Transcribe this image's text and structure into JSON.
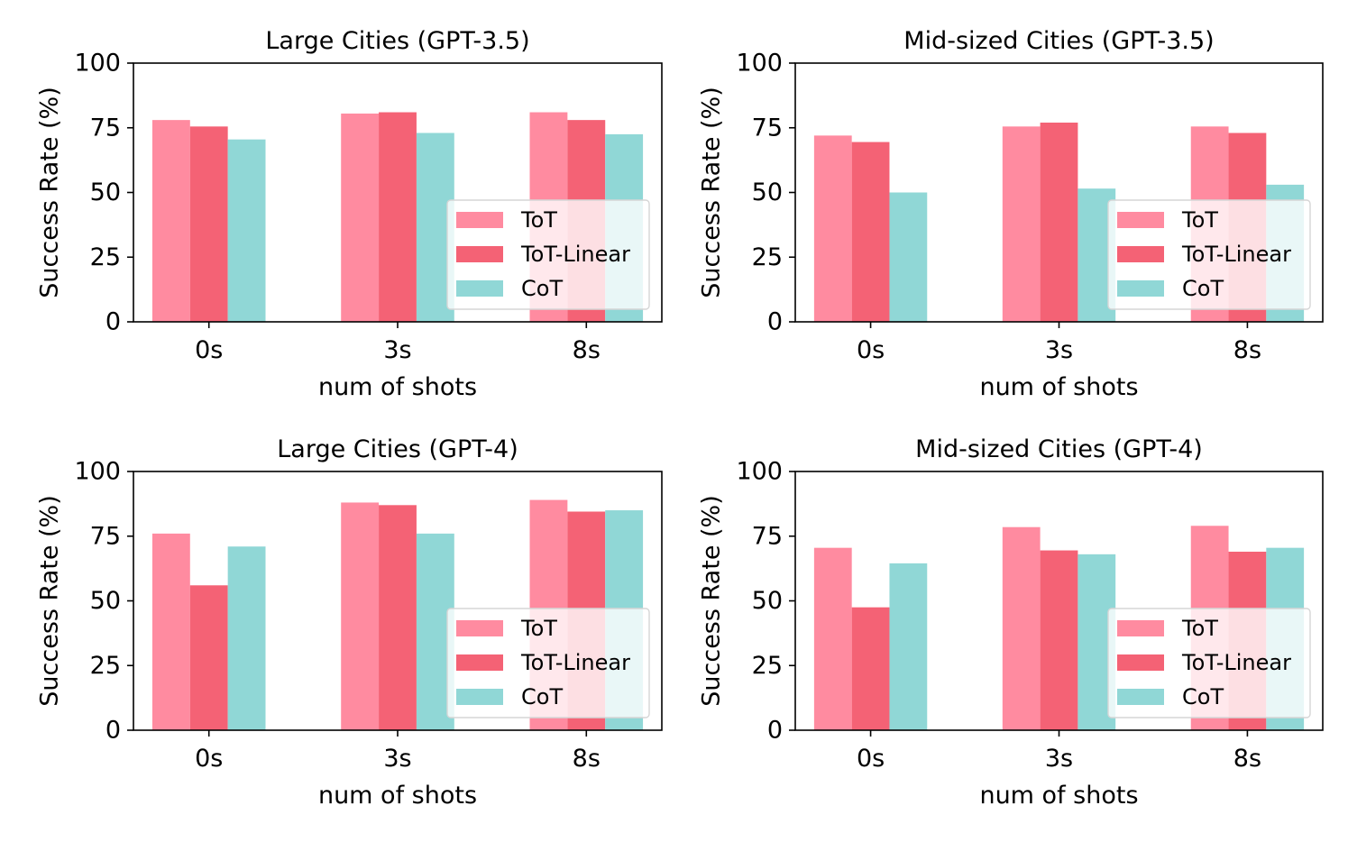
{
  "chart_data": [
    {
      "type": "bar",
      "title": "Large Cities (GPT-3.5)",
      "xlabel": "num of shots",
      "ylabel": "Success Rate (%)",
      "ylim": [
        0,
        100
      ],
      "yticks": [
        0,
        25,
        50,
        75,
        100
      ],
      "categories": [
        "0s",
        "3s",
        "8s"
      ],
      "legend": "lower-right",
      "grid": false,
      "series": [
        {
          "name": "ToT",
          "color": "#ff8ba0",
          "values": [
            78,
            80.5,
            81
          ]
        },
        {
          "name": "ToT-Linear",
          "color": "#f46275",
          "values": [
            75.5,
            81,
            78
          ]
        },
        {
          "name": "CoT",
          "color": "#90d7d6",
          "values": [
            70.5,
            73,
            72.5
          ]
        }
      ]
    },
    {
      "type": "bar",
      "title": "Mid-sized Cities (GPT-3.5)",
      "xlabel": "num of shots",
      "ylabel": "Success Rate (%)",
      "ylim": [
        0,
        100
      ],
      "yticks": [
        0,
        25,
        50,
        75,
        100
      ],
      "categories": [
        "0s",
        "3s",
        "8s"
      ],
      "legend": "lower-right",
      "grid": false,
      "series": [
        {
          "name": "ToT",
          "color": "#ff8ba0",
          "values": [
            72,
            75.5,
            75.5
          ]
        },
        {
          "name": "ToT-Linear",
          "color": "#f46275",
          "values": [
            69.5,
            77,
            73
          ]
        },
        {
          "name": "CoT",
          "color": "#90d7d6",
          "values": [
            50,
            51.5,
            53
          ]
        }
      ]
    },
    {
      "type": "bar",
      "title": "Large Cities (GPT-4)",
      "xlabel": "num of shots",
      "ylabel": "Success Rate (%)",
      "ylim": [
        0,
        100
      ],
      "yticks": [
        0,
        25,
        50,
        75,
        100
      ],
      "categories": [
        "0s",
        "3s",
        "8s"
      ],
      "legend": "lower-right",
      "grid": false,
      "series": [
        {
          "name": "ToT",
          "color": "#ff8ba0",
          "values": [
            76,
            88,
            89
          ]
        },
        {
          "name": "ToT-Linear",
          "color": "#f46275",
          "values": [
            56,
            87,
            84.5
          ]
        },
        {
          "name": "CoT",
          "color": "#90d7d6",
          "values": [
            71,
            76,
            85
          ]
        }
      ]
    },
    {
      "type": "bar",
      "title": "Mid-sized Cities (GPT-4)",
      "xlabel": "num of shots",
      "ylabel": "Success Rate (%)",
      "ylim": [
        0,
        100
      ],
      "yticks": [
        0,
        25,
        50,
        75,
        100
      ],
      "categories": [
        "0s",
        "3s",
        "8s"
      ],
      "legend": "lower-right",
      "grid": false,
      "series": [
        {
          "name": "ToT",
          "color": "#ff8ba0",
          "values": [
            70.5,
            78.5,
            79
          ]
        },
        {
          "name": "ToT-Linear",
          "color": "#f46275",
          "values": [
            47.5,
            69.5,
            69
          ]
        },
        {
          "name": "CoT",
          "color": "#90d7d6",
          "values": [
            64.5,
            68,
            70.5
          ]
        }
      ]
    }
  ]
}
